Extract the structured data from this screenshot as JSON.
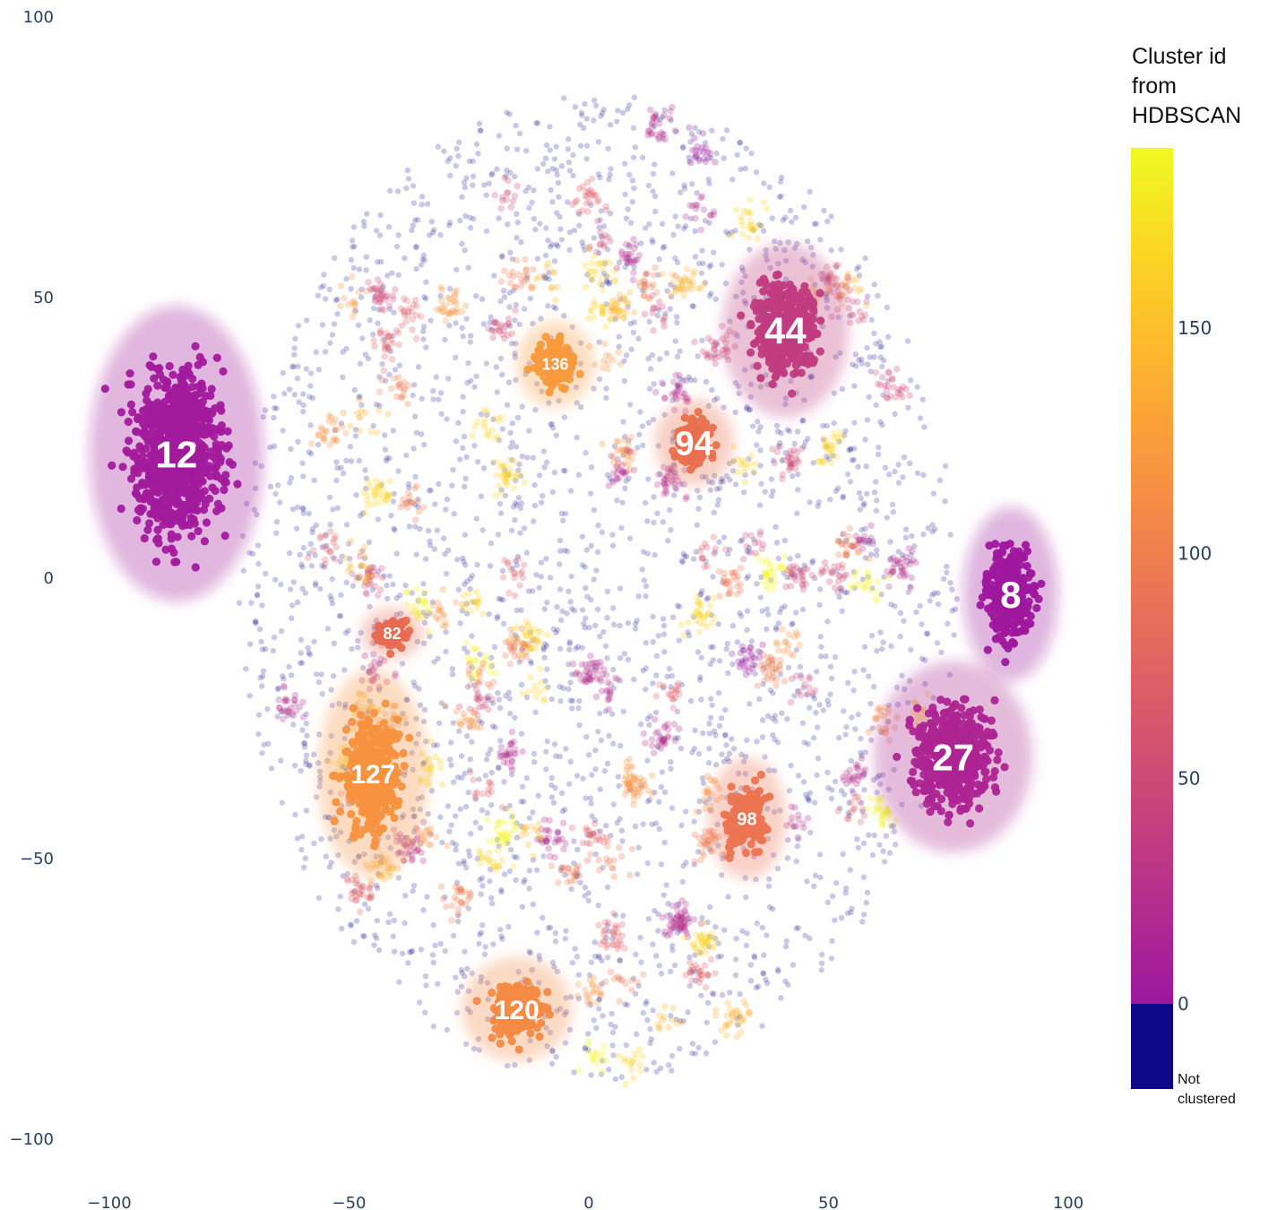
{
  "chart_data": {
    "type": "scatter",
    "title": "",
    "xlabel": "",
    "ylabel": "",
    "xlim": [
      -100,
      100
    ],
    "ylim": [
      -100,
      100
    ],
    "x_ticks": [
      -100,
      -50,
      0,
      50,
      100
    ],
    "y_ticks": [
      100,
      50,
      0,
      -50,
      -100
    ],
    "x_tick_labels": [
      "−100",
      "−50",
      "0",
      "50",
      "100"
    ],
    "y_tick_labels": [
      "100",
      "50",
      "0",
      "−50",
      "−100"
    ],
    "grid": false,
    "colorbar": {
      "title_lines": [
        "Cluster id",
        "from",
        "HDBSCAN"
      ],
      "range": [
        0,
        190
      ],
      "ticks": [
        0,
        50,
        100,
        150
      ],
      "tick_labels": [
        "0",
        "50",
        "100",
        "150"
      ],
      "not_clustered_label_lines": [
        "Not",
        "clustered"
      ],
      "not_clustered_color": "#0d0887",
      "colorscale": [
        "#9c179e",
        "#b52f8c",
        "#cc4778",
        "#de5f65",
        "#ed7953",
        "#f89540",
        "#fdb42f",
        "#fbd524",
        "#f0f921"
      ]
    },
    "highlighted_clusters": [
      {
        "id": 12,
        "label": "12",
        "x": -86,
        "y": 22,
        "color": "#a21a9c"
      },
      {
        "id": 44,
        "label": "44",
        "x": 41,
        "y": 44,
        "color": "#c13b80"
      },
      {
        "id": 136,
        "label": "136",
        "x": -7,
        "y": 38,
        "color": "#f89a3c"
      },
      {
        "id": 94,
        "label": "94",
        "x": 22,
        "y": 24,
        "color": "#e9704e"
      },
      {
        "id": 8,
        "label": "8",
        "x": 88,
        "y": -3,
        "color": "#9e179d"
      },
      {
        "id": 82,
        "label": "82",
        "x": -41,
        "y": -10,
        "color": "#e66b52"
      },
      {
        "id": 27,
        "label": "27",
        "x": 76,
        "y": -32,
        "color": "#ad2492"
      },
      {
        "id": 127,
        "label": "127",
        "x": -45,
        "y": -35,
        "color": "#f7923f"
      },
      {
        "id": 98,
        "label": "98",
        "x": 33,
        "y": -43,
        "color": "#ec7450"
      },
      {
        "id": 120,
        "label": "120",
        "x": -15,
        "y": -77,
        "color": "#f38b44"
      }
    ]
  }
}
